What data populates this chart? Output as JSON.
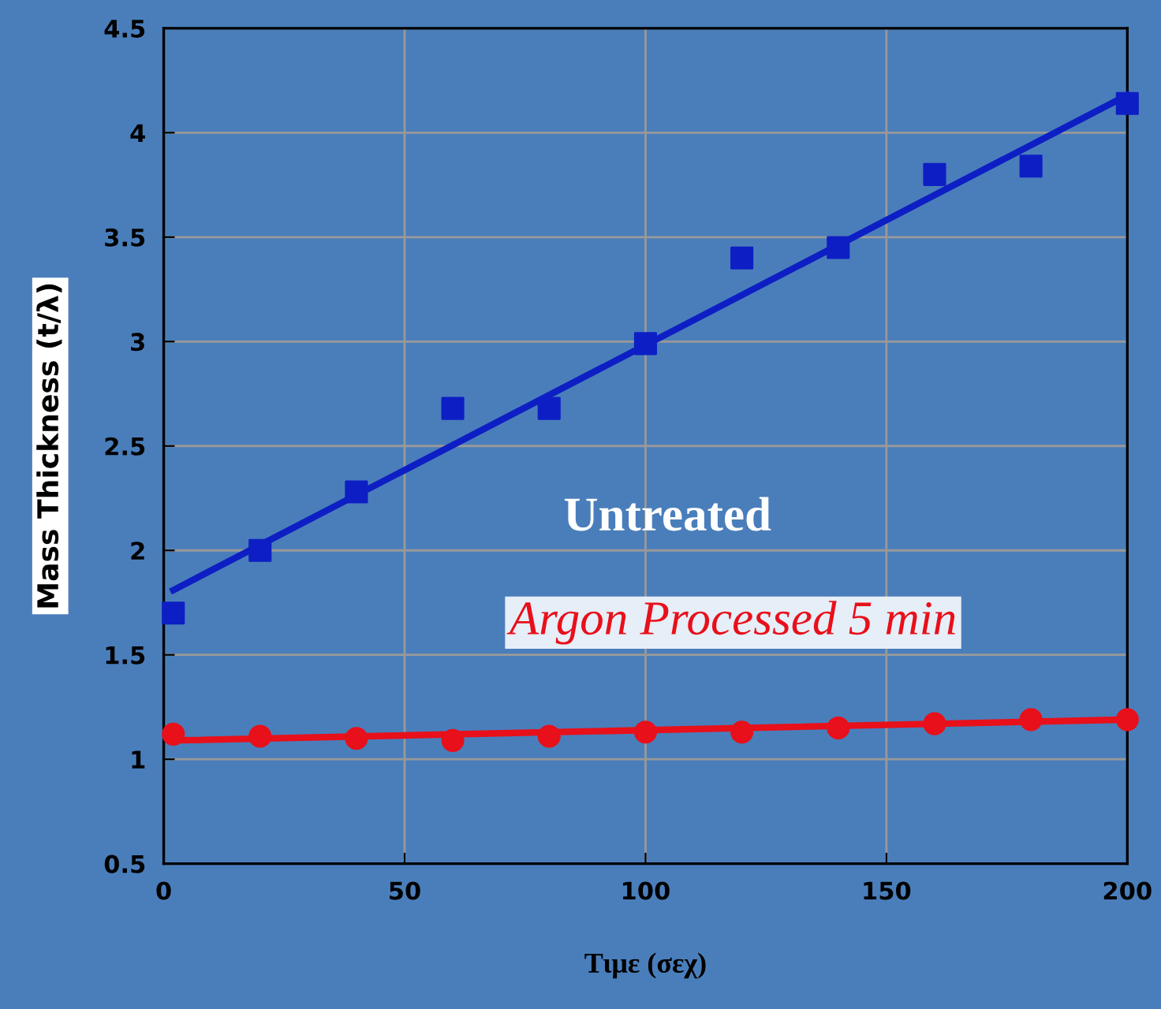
{
  "chart_data": {
    "type": "scatter",
    "xlabel": "Τιμε (σεχ)",
    "ylabel": "Mass Thickness (t/λ)",
    "xlim": [
      0,
      200
    ],
    "ylim": [
      0.5,
      4.5
    ],
    "xticks": [
      0,
      50,
      100,
      150,
      200
    ],
    "yticks": [
      0.5,
      1,
      1.5,
      2,
      2.5,
      3,
      3.5,
      4,
      4.5
    ],
    "grid": true,
    "legend": false,
    "series": [
      {
        "name": "Untreated",
        "color": "#0d1fc4",
        "marker": "square",
        "x": [
          2,
          20,
          40,
          60,
          80,
          100,
          120,
          140,
          160,
          180,
          200
        ],
        "values": [
          1.7,
          2.0,
          2.28,
          2.68,
          2.68,
          2.99,
          3.4,
          3.45,
          3.8,
          3.84,
          4.14
        ]
      },
      {
        "type": "line",
        "color": "#0d1fc4",
        "x": [
          2,
          200
        ],
        "values": [
          1.81,
          4.18
        ]
      },
      {
        "name": "Argon Processed 5 min",
        "color": "#e8101a",
        "marker": "circle",
        "x": [
          2,
          20,
          40,
          60,
          80,
          100,
          120,
          140,
          160,
          180,
          200
        ],
        "values": [
          1.12,
          1.11,
          1.1,
          1.09,
          1.11,
          1.13,
          1.13,
          1.15,
          1.17,
          1.19,
          1.19
        ]
      },
      {
        "type": "line",
        "color": "#e8101a",
        "x": [
          2,
          200
        ],
        "values": [
          1.09,
          1.19
        ]
      }
    ]
  }
}
